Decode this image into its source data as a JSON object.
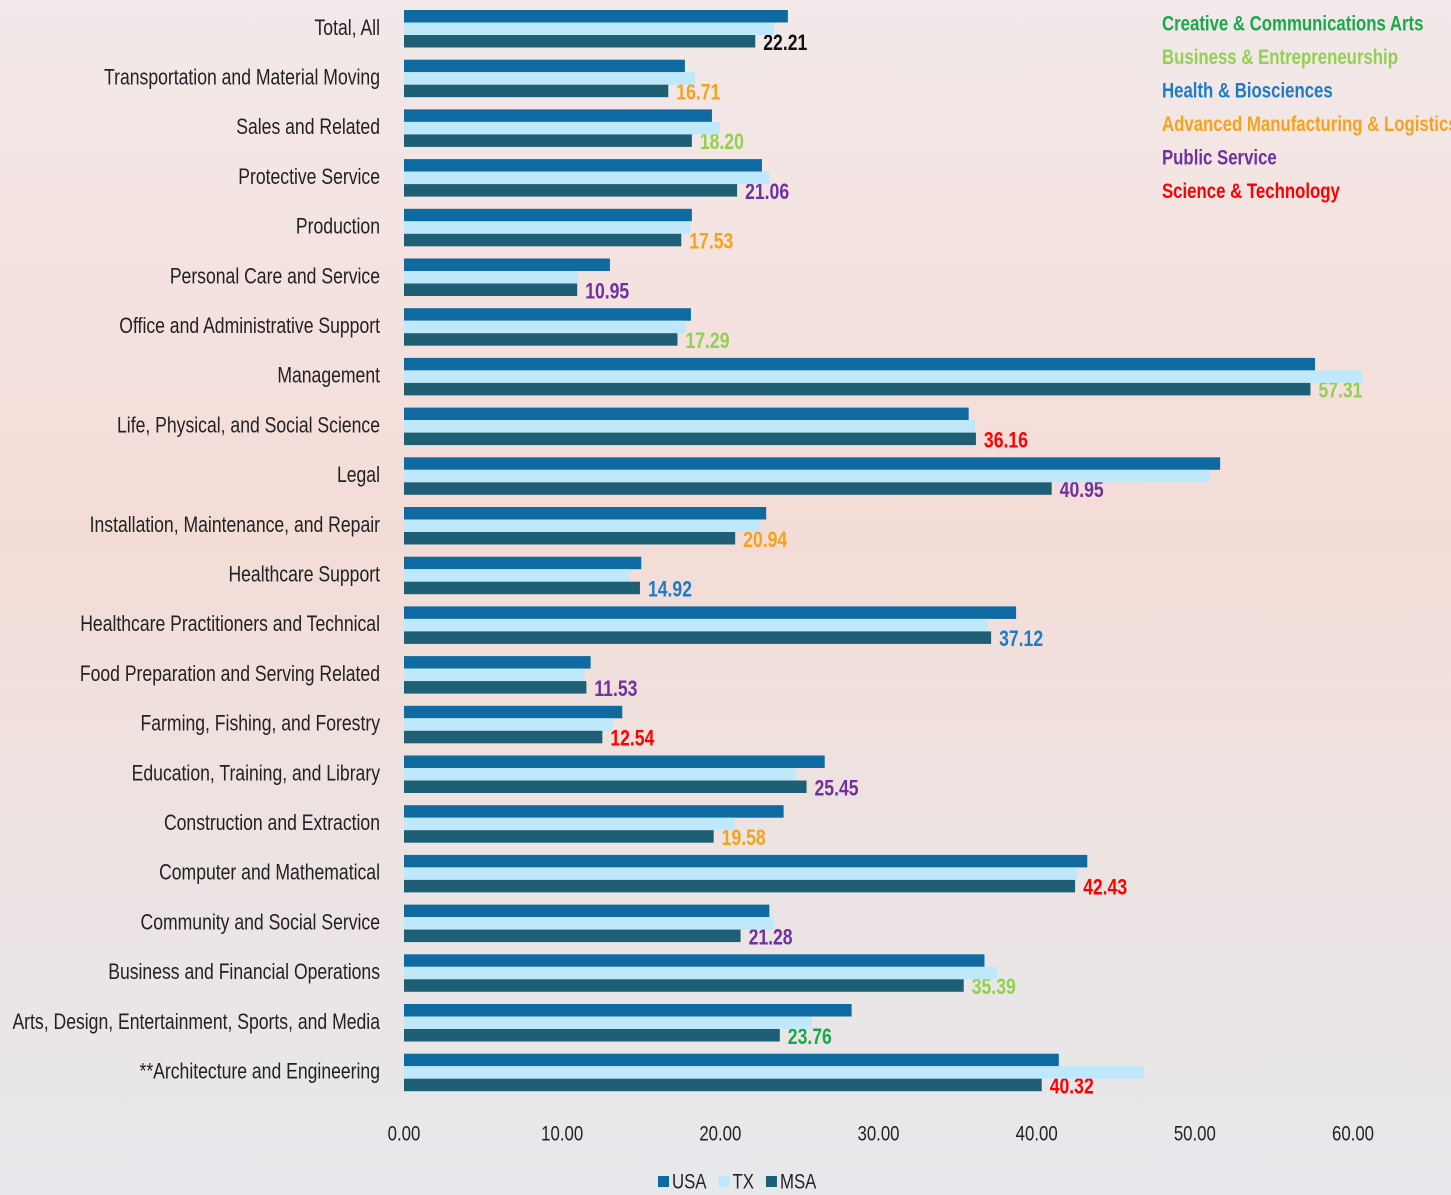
{
  "chart_data": {
    "type": "hbar",
    "categories": [
      "Total, All",
      "Transportation and Material Moving",
      "Sales and Related",
      "Protective Service",
      "Production",
      "Personal Care and Service",
      "Office and Administrative Support",
      "Management",
      "Life, Physical, and Social Science",
      "Legal",
      "Installation, Maintenance, and Repair",
      "Healthcare Support",
      "Healthcare Practitioners and Technical",
      "Food Preparation and Serving Related",
      "Farming, Fishing, and Forestry",
      "Education, Training, and Library",
      "Construction and Extraction",
      "Computer and Mathematical",
      "Community and Social Service",
      "Business and Financial Operations",
      "Arts, Design, Entertainment, Sports, and Media",
      "**Architecture and Engineering"
    ],
    "series": [
      {
        "name": "USA",
        "color": "#0e6aa0",
        "values": [
          24.27,
          17.76,
          19.47,
          22.63,
          18.2,
          13.02,
          18.14,
          57.6,
          35.7,
          51.6,
          22.9,
          15.0,
          38.7,
          11.8,
          13.8,
          26.6,
          24.0,
          43.2,
          23.1,
          36.7,
          28.3,
          41.4
        ]
      },
      {
        "name": "TX",
        "color": "#bfe9fb",
        "values": [
          23.4,
          18.4,
          19.97,
          23.1,
          18.1,
          11.0,
          17.8,
          60.6,
          36.1,
          50.9,
          22.5,
          14.3,
          36.9,
          11.4,
          13.2,
          24.8,
          20.9,
          42.6,
          23.4,
          37.5,
          25.8,
          46.8
        ]
      },
      {
        "name": "MSA",
        "color": "#1f5f75",
        "values": [
          22.21,
          16.71,
          18.2,
          21.06,
          17.53,
          10.95,
          17.29,
          57.31,
          36.16,
          40.95,
          20.94,
          14.92,
          37.12,
          11.53,
          12.54,
          25.45,
          19.58,
          42.43,
          21.28,
          35.39,
          23.76,
          40.32
        ],
        "value_labels": [
          "22.21",
          "16.71",
          "18.20",
          "21.06",
          "17.53",
          "10.95",
          "17.29",
          "57.31",
          "36.16",
          "40.95",
          "20.94",
          "14.92",
          "37.12",
          "11.53",
          "12.54",
          "25.45",
          "19.58",
          "42.43",
          "21.28",
          "35.39",
          "23.76",
          "40.32"
        ],
        "value_label_colors": [
          "#111111",
          "#f7a21b",
          "#92d050",
          "#7030a0",
          "#f7a21b",
          "#7030a0",
          "#92d050",
          "#92d050",
          "#ff0000",
          "#7030a0",
          "#f7a21b",
          "#1f7bc4",
          "#1f7bc4",
          "#7030a0",
          "#ff0000",
          "#7030a0",
          "#f7a21b",
          "#ff0000",
          "#7030a0",
          "#92d050",
          "#1aa84a",
          "#ff0000"
        ]
      }
    ],
    "xlim": [
      0,
      60
    ],
    "xticks": [
      {
        "value": 0,
        "label": "0.00"
      },
      {
        "value": 10,
        "label": "10.00"
      },
      {
        "value": 20,
        "label": "20.00"
      },
      {
        "value": 30,
        "label": "30.00"
      },
      {
        "value": 40,
        "label": "40.00"
      },
      {
        "value": 50,
        "label": "50.00"
      },
      {
        "value": 60,
        "label": "60.00"
      }
    ],
    "cluster_legend": [
      {
        "name": "Creative & Communications Arts",
        "color": "#1aa84a"
      },
      {
        "name": "Business & Entrepreneurship",
        "color": "#92d050"
      },
      {
        "name": "Health & Biosciences",
        "color": "#1f7bc4"
      },
      {
        "name": "Advanced Manufacturing & Logistics",
        "color": "#f7a21b"
      },
      {
        "name": "Public Service",
        "color": "#7030a0"
      },
      {
        "name": "Science & Technology",
        "color": "#ff0000"
      }
    ]
  }
}
